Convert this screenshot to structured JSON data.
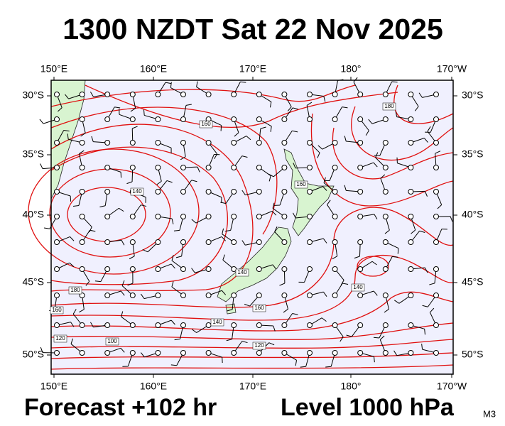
{
  "title": "1300 NZDT Sat 22 Nov 2025",
  "axes": {
    "top": [
      "150°E",
      "160°E",
      "170°E",
      "180°",
      "170°W"
    ],
    "bottom": [
      "150°E",
      "160°E",
      "170°E",
      "180°",
      "170°W"
    ],
    "left": [
      "30°S",
      "35°S",
      "40°S",
      "45°S",
      "50°S"
    ],
    "right": [
      "30°S",
      "35°S",
      "40°S",
      "45°S",
      "50°S"
    ]
  },
  "contour_labels": [
    "160",
    "180",
    "140",
    "160",
    "140",
    "160",
    "140",
    "180",
    "160",
    "120",
    "100",
    "120",
    "140"
  ],
  "footer": {
    "forecast": "Forecast +102 hr",
    "level": "Level 1000 hPa",
    "model": "M3"
  }
}
